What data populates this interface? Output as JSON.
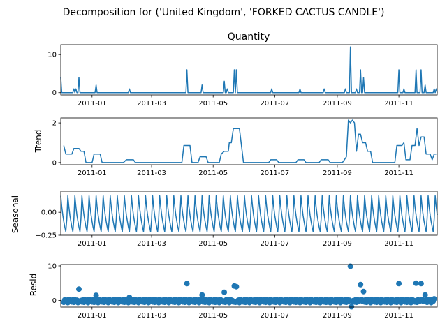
{
  "figure_title": "Decomposition for ('United Kingdom', 'FORKED CACTUS CANDLE')",
  "colors": {
    "series": "#1f77b4",
    "axis": "#000000",
    "background": "#ffffff"
  },
  "chart_data": [
    {
      "type": "line",
      "title": "Quantity",
      "ylabel": "",
      "ylim": [
        -0.6,
        12.6
      ],
      "yticks": [
        0,
        10
      ],
      "xrange": [
        "2010-12-01",
        "2011-12-09"
      ],
      "xticks": [
        "2011-01",
        "2011-03",
        "2011-05",
        "2011-07",
        "2011-09",
        "2011-11"
      ],
      "spikes": [
        {
          "x": "2010-12-01",
          "y": 4
        },
        {
          "x": "2010-12-14",
          "y": 1
        },
        {
          "x": "2010-12-16",
          "y": 1
        },
        {
          "x": "2010-12-19",
          "y": 4
        },
        {
          "x": "2011-01-05",
          "y": 2
        },
        {
          "x": "2011-02-07",
          "y": 1
        },
        {
          "x": "2011-04-05",
          "y": 6
        },
        {
          "x": "2011-04-20",
          "y": 2
        },
        {
          "x": "2011-05-12",
          "y": 3
        },
        {
          "x": "2011-05-15",
          "y": 1
        },
        {
          "x": "2011-05-22",
          "y": 6
        },
        {
          "x": "2011-05-24",
          "y": 6
        },
        {
          "x": "2011-06-28",
          "y": 1
        },
        {
          "x": "2011-07-26",
          "y": 1
        },
        {
          "x": "2011-08-19",
          "y": 1
        },
        {
          "x": "2011-09-09",
          "y": 1
        },
        {
          "x": "2011-09-14",
          "y": 12
        },
        {
          "x": "2011-09-20",
          "y": 1
        },
        {
          "x": "2011-09-24",
          "y": 6
        },
        {
          "x": "2011-09-27",
          "y": 4
        },
        {
          "x": "2011-11-01",
          "y": 6
        },
        {
          "x": "2011-11-06",
          "y": 1
        },
        {
          "x": "2011-11-18",
          "y": 6
        },
        {
          "x": "2011-11-23",
          "y": 6
        },
        {
          "x": "2011-11-27",
          "y": 2
        },
        {
          "x": "2011-12-06",
          "y": 1
        },
        {
          "x": "2011-12-08",
          "y": 1
        }
      ]
    },
    {
      "type": "line",
      "title": "",
      "ylabel": "Trend",
      "ylim": [
        -0.11,
        2.25
      ],
      "yticks": [
        0,
        2
      ],
      "xrange": [
        "2010-12-01",
        "2011-12-09"
      ],
      "xticks": [
        "2011-01",
        "2011-03",
        "2011-05",
        "2011-07",
        "2011-09",
        "2011-11"
      ],
      "series": [
        {
          "points": [
            [
              "2010-12-04",
              0.86
            ],
            [
              "2010-12-06",
              0.43
            ],
            [
              "2010-12-12",
              0.43
            ],
            [
              "2010-12-14",
              0.71
            ],
            [
              "2010-12-19",
              0.71
            ],
            [
              "2010-12-21",
              0.57
            ],
            [
              "2010-12-24",
              0.57
            ],
            [
              "2010-12-26",
              0.0
            ],
            [
              "2011-01-01",
              0.0
            ],
            [
              "2011-01-03",
              0.43
            ],
            [
              "2011-01-09",
              0.43
            ],
            [
              "2011-01-11",
              0.0
            ],
            [
              "2011-02-01",
              0.0
            ],
            [
              "2011-02-04",
              0.14
            ],
            [
              "2011-02-11",
              0.14
            ],
            [
              "2011-02-13",
              0.0
            ],
            [
              "2011-03-31",
              0.0
            ],
            [
              "2011-04-02",
              0.86
            ],
            [
              "2011-04-08",
              0.86
            ],
            [
              "2011-04-10",
              0.0
            ],
            [
              "2011-04-16",
              0.0
            ],
            [
              "2011-04-18",
              0.29
            ],
            [
              "2011-04-24",
              0.29
            ],
            [
              "2011-04-26",
              0.0
            ],
            [
              "2011-05-07",
              0.0
            ],
            [
              "2011-05-09",
              0.43
            ],
            [
              "2011-05-12",
              0.57
            ],
            [
              "2011-05-16",
              0.57
            ],
            [
              "2011-05-17",
              1.0
            ],
            [
              "2011-05-19",
              1.0
            ],
            [
              "2011-05-21",
              1.71
            ],
            [
              "2011-05-27",
              1.71
            ],
            [
              "2011-05-29",
              0.86
            ],
            [
              "2011-05-31",
              0.0
            ],
            [
              "2011-06-25",
              0.0
            ],
            [
              "2011-06-27",
              0.14
            ],
            [
              "2011-07-03",
              0.14
            ],
            [
              "2011-07-05",
              0.0
            ],
            [
              "2011-07-22",
              0.0
            ],
            [
              "2011-07-24",
              0.14
            ],
            [
              "2011-07-30",
              0.14
            ],
            [
              "2011-08-01",
              0.0
            ],
            [
              "2011-08-14",
              0.0
            ],
            [
              "2011-08-16",
              0.14
            ],
            [
              "2011-08-23",
              0.14
            ],
            [
              "2011-08-25",
              0.0
            ],
            [
              "2011-09-06",
              0.0
            ],
            [
              "2011-09-08",
              0.14
            ],
            [
              "2011-09-10",
              0.29
            ],
            [
              "2011-09-12",
              2.14
            ],
            [
              "2011-09-14",
              2.0
            ],
            [
              "2011-09-16",
              2.14
            ],
            [
              "2011-09-18",
              2.0
            ],
            [
              "2011-09-20",
              0.57
            ],
            [
              "2011-09-22",
              1.43
            ],
            [
              "2011-09-24",
              1.43
            ],
            [
              "2011-09-26",
              1.0
            ],
            [
              "2011-09-29",
              1.0
            ],
            [
              "2011-10-01",
              0.57
            ],
            [
              "2011-10-04",
              0.57
            ],
            [
              "2011-10-06",
              0.0
            ],
            [
              "2011-10-28",
              0.0
            ],
            [
              "2011-10-30",
              0.86
            ],
            [
              "2011-11-04",
              0.86
            ],
            [
              "2011-11-06",
              1.0
            ],
            [
              "2011-11-08",
              0.14
            ],
            [
              "2011-11-12",
              0.14
            ],
            [
              "2011-11-14",
              0.86
            ],
            [
              "2011-11-17",
              0.86
            ],
            [
              "2011-11-19",
              1.71
            ],
            [
              "2011-11-21",
              0.86
            ],
            [
              "2011-11-23",
              1.29
            ],
            [
              "2011-11-26",
              1.29
            ],
            [
              "2011-11-28",
              0.43
            ],
            [
              "2011-12-02",
              0.43
            ],
            [
              "2011-12-04",
              0.14
            ],
            [
              "2011-12-06",
              0.43
            ],
            [
              "2011-12-08",
              0.43
            ]
          ]
        }
      ]
    },
    {
      "type": "line",
      "title": "",
      "ylabel": "Seasonal",
      "ylim": [
        -0.25,
        0.23
      ],
      "yticks": [
        -0.25,
        0.0
      ],
      "ytick_labels": [
        "−0.25",
        "0.00"
      ],
      "xrange": [
        "2010-12-01",
        "2011-12-09"
      ],
      "xticks": [
        "2011-01",
        "2011-03",
        "2011-05",
        "2011-07",
        "2011-09",
        "2011-11"
      ],
      "period_days": 7,
      "weekly_pattern": [
        0.18,
        0.06,
        -0.03,
        -0.1,
        -0.16,
        -0.21,
        -0.07
      ]
    },
    {
      "type": "scatter",
      "title": "",
      "ylabel": "Resid",
      "ylim": [
        -1.9,
        10.4
      ],
      "yticks": [
        0,
        10
      ],
      "xrange": [
        "2010-12-01",
        "2011-12-09"
      ],
      "xticks": [
        "2011-01",
        "2011-03",
        "2011-05",
        "2011-07",
        "2011-09",
        "2011-11"
      ],
      "baseline_values": [
        -0.5,
        0.2,
        -0.3,
        0.1,
        -0.6,
        0.3,
        -0.2,
        0.0,
        -0.4,
        0.2
      ],
      "outliers": [
        {
          "x": "2010-12-19",
          "y": 3.3
        },
        {
          "x": "2011-01-05",
          "y": 1.5
        },
        {
          "x": "2011-02-07",
          "y": 0.9
        },
        {
          "x": "2011-04-05",
          "y": 4.9
        },
        {
          "x": "2011-04-20",
          "y": 1.6
        },
        {
          "x": "2011-05-12",
          "y": 2.4
        },
        {
          "x": "2011-05-22",
          "y": 4.2
        },
        {
          "x": "2011-05-24",
          "y": 4.0
        },
        {
          "x": "2011-09-14",
          "y": 9.9
        },
        {
          "x": "2011-09-15",
          "y": -1.8
        },
        {
          "x": "2011-09-24",
          "y": 4.6
        },
        {
          "x": "2011-09-27",
          "y": 2.6
        },
        {
          "x": "2011-11-01",
          "y": 4.9
        },
        {
          "x": "2011-11-18",
          "y": 5.0
        },
        {
          "x": "2011-11-23",
          "y": 4.9
        },
        {
          "x": "2011-11-27",
          "y": 1.6
        },
        {
          "x": "2011-12-06",
          "y": 0.5
        }
      ]
    }
  ]
}
